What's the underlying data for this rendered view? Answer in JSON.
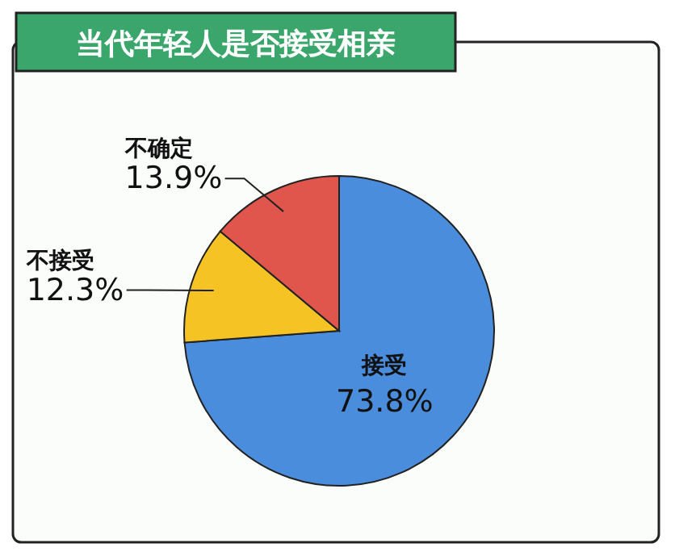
{
  "chart_data": {
    "type": "pie",
    "title": "当代年轻人是否接受相亲",
    "categories": [
      "接受",
      "不接受",
      "不确定"
    ],
    "values": [
      73.8,
      12.3,
      13.9
    ],
    "value_labels": [
      "73.8%",
      "12.3%",
      "13.9%"
    ],
    "colors": [
      "#4a8ddc",
      "#f6c325",
      "#e0564c"
    ]
  }
}
